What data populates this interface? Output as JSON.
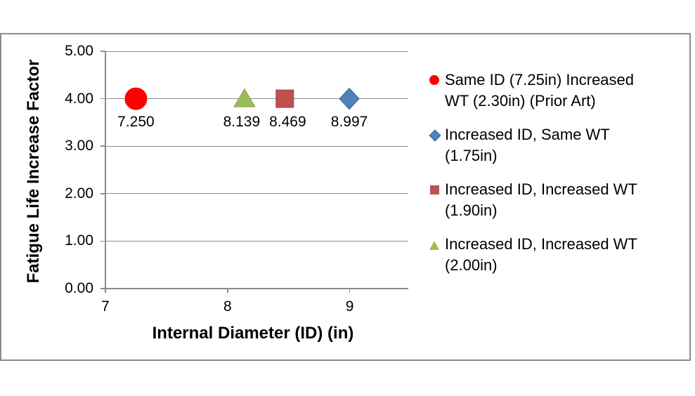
{
  "chart_data": {
    "type": "scatter",
    "title": "",
    "xlabel": "Internal Diameter (ID) (in)",
    "ylabel": "Fatigue Life Increase Factor",
    "xlim": [
      7,
      9.48
    ],
    "ylim": [
      0,
      5
    ],
    "x_ticks": [
      7,
      8,
      9
    ],
    "y_ticks": [
      "5.00",
      "4.00",
      "3.00",
      "2.00",
      "1.00",
      "0.00"
    ],
    "grid": true,
    "legend_position": "right",
    "colors": {
      "grid": "#8e8e8e",
      "axis": "#8a8a8a",
      "frame_border": "#8b8b8b",
      "text": "#000000",
      "red": "#ff0000",
      "blue": "#4f81bd",
      "brick": "#c0504d",
      "green": "#9bbb59"
    },
    "series": [
      {
        "name": "Same ID (7.25in) Increased WT (2.30in) (Prior Art)",
        "legend_lines": [
          "Same ID (7.25in) Increased",
          "WT (2.30in) (Prior Art)"
        ],
        "marker": "circle",
        "color": "#ff0000",
        "border": "#ff0000",
        "x": [
          7.25
        ],
        "y": [
          4.0
        ],
        "point_labels": [
          "7.250"
        ]
      },
      {
        "name": "Increased ID, Same WT (1.75in)",
        "legend_lines": [
          "Increased ID, Same WT",
          "(1.75in)"
        ],
        "marker": "diamond",
        "color": "#4f81bd",
        "border": "#3a6790",
        "x": [
          8.997
        ],
        "y": [
          4.0
        ],
        "point_labels": [
          "8.997"
        ]
      },
      {
        "name": "Increased ID, Increased WT (1.90in)",
        "legend_lines": [
          "Increased ID, Increased WT",
          "(1.90in)"
        ],
        "marker": "square",
        "color": "#c0504d",
        "border": "#a8433f",
        "x": [
          8.469
        ],
        "y": [
          4.0
        ],
        "point_labels": [
          "8.469"
        ]
      },
      {
        "name": "Increased ID, Increased WT (2.00in)",
        "legend_lines": [
          "Increased ID, Increased WT",
          "(2.00in)"
        ],
        "marker": "triangle",
        "color": "#9bbb59",
        "border": "#87a349",
        "x": [
          8.139
        ],
        "y": [
          4.0
        ],
        "point_labels": [
          "8.139"
        ]
      }
    ]
  }
}
